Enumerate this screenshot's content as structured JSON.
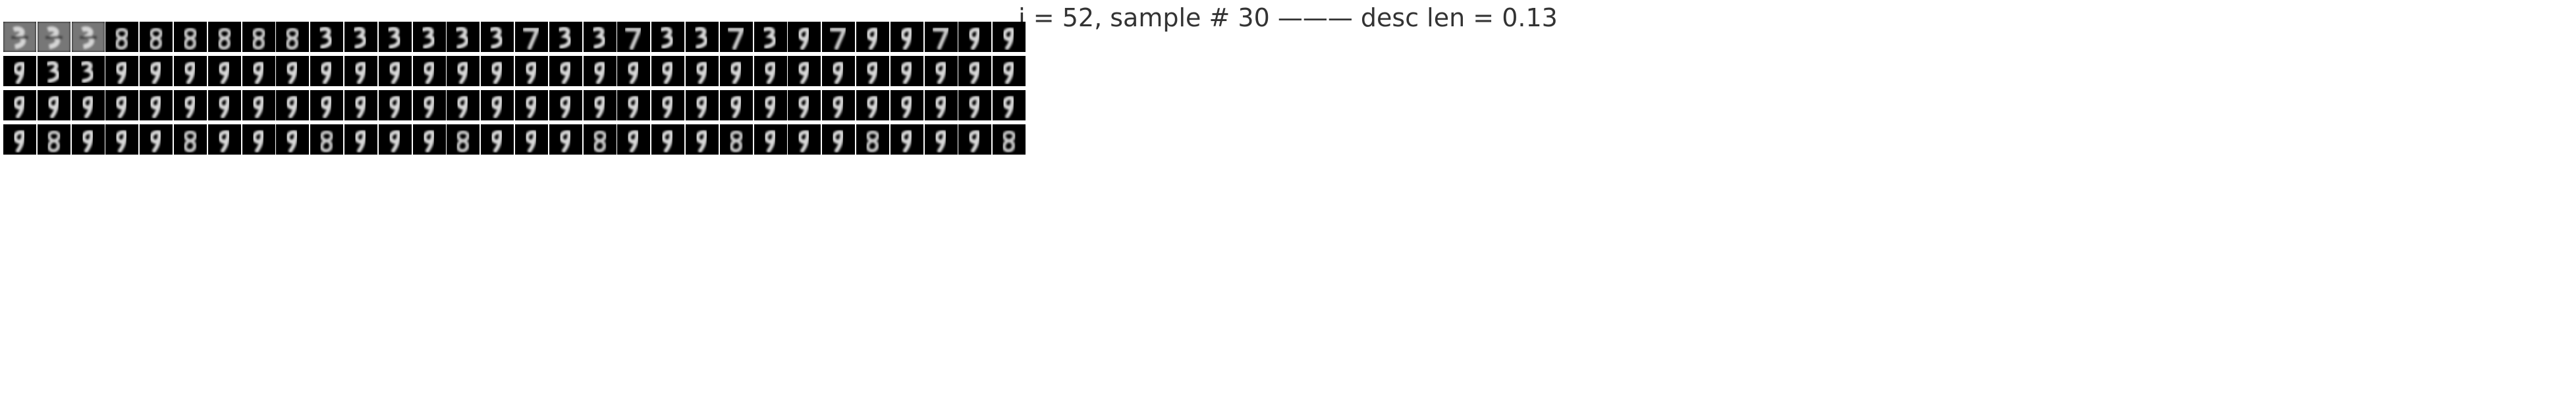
{
  "title": "i = 52, sample # 30 ——— desc len = 0.13",
  "grid": {
    "rows": 4,
    "cols": 30
  },
  "colors": {
    "background": "#ffffff",
    "tile_background": "#000000",
    "digit_stroke": "#ffffff"
  }
}
